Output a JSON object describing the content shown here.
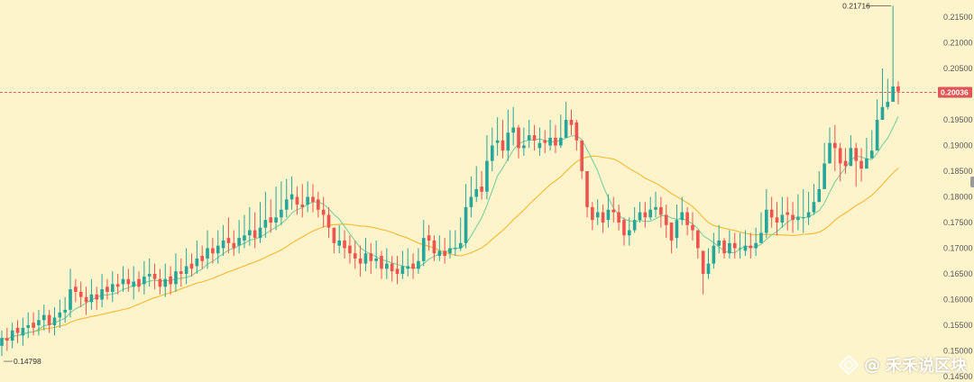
{
  "chart_data": {
    "type": "candlestick",
    "y_ticks": [
      "0.21500",
      "0.21000",
      "0.20500",
      "0.20000",
      "0.19500",
      "0.19000",
      "0.18500",
      "0.18000",
      "0.17500",
      "0.17000",
      "0.16500",
      "0.16000",
      "0.15500",
      "0.15000",
      "0.14500"
    ],
    "ylim": [
      0.1445,
      0.2175
    ],
    "current_price": "0.20036",
    "current_price_value": 0.20036,
    "max_label": "0.21716",
    "max_value": 0.21716,
    "min_label": "0.14798",
    "min_value": 0.14798,
    "colors": {
      "up": "#26a69a",
      "down": "#ef5350",
      "fast_ma": "#7ccfa0",
      "slow_ma": "#f5b82e",
      "price_line": "#e05555",
      "background": "#fdf4cc"
    },
    "closes": [
      0.1525,
      0.152,
      0.154,
      0.1535,
      0.1545,
      0.155,
      0.1545,
      0.156,
      0.157,
      0.155,
      0.1565,
      0.1575,
      0.158,
      0.162,
      0.1615,
      0.1605,
      0.1595,
      0.161,
      0.16,
      0.162,
      0.1615,
      0.163,
      0.1625,
      0.164,
      0.163,
      0.1635,
      0.1625,
      0.1645,
      0.165,
      0.164,
      0.1625,
      0.164,
      0.163,
      0.1655,
      0.165,
      0.1665,
      0.166,
      0.168,
      0.1675,
      0.17,
      0.169,
      0.1705,
      0.1715,
      0.171,
      0.17,
      0.172,
      0.1725,
      0.1735,
      0.172,
      0.174,
      0.1755,
      0.175,
      0.176,
      0.1775,
      0.1795,
      0.1805,
      0.1785,
      0.178,
      0.18,
      0.179,
      0.1775,
      0.1765,
      0.174,
      0.171,
      0.1715,
      0.17,
      0.169,
      0.168,
      0.167,
      0.169,
      0.1675,
      0.168,
      0.166,
      0.167,
      0.1655,
      0.165,
      0.1665,
      0.1665,
      0.166,
      0.1675,
      0.172,
      0.1715,
      0.169,
      0.1695,
      0.1685,
      0.17,
      0.17,
      0.171,
      0.178,
      0.18,
      0.1815,
      0.181,
      0.187,
      0.19,
      0.191,
      0.189,
      0.1925,
      0.1935,
      0.1895,
      0.19,
      0.192,
      0.191,
      0.1905,
      0.1905,
      0.1915,
      0.19,
      0.1915,
      0.195,
      0.194,
      0.191,
      0.185,
      0.178,
      0.1755,
      0.177,
      0.175,
      0.1775,
      0.177,
      0.175,
      0.1725,
      0.1735,
      0.1755,
      0.177,
      0.176,
      0.1775,
      0.178,
      0.1765,
      0.1745,
      0.1715,
      0.1755,
      0.177,
      0.1745,
      0.1735,
      0.17,
      0.165,
      0.167,
      0.1705,
      0.1715,
      0.169,
      0.171,
      0.17,
      0.17,
      0.1705,
      0.17,
      0.171,
      0.173,
      0.1775,
      0.176,
      0.175,
      0.1765,
      0.1765,
      0.1755,
      0.176,
      0.176,
      0.177,
      0.179,
      0.1815,
      0.1865,
      0.1905,
      0.1895,
      0.1865,
      0.186,
      0.1895,
      0.187,
      0.1855,
      0.1875,
      0.189,
      0.195,
      0.1975,
      0.1985,
      0.2015,
      0.2005
    ],
    "opens": [
      0.151,
      0.1525,
      0.152,
      0.1545,
      0.153,
      0.1545,
      0.1555,
      0.155,
      0.156,
      0.157,
      0.155,
      0.1565,
      0.1575,
      0.158,
      0.1625,
      0.1615,
      0.1605,
      0.1595,
      0.161,
      0.16,
      0.1625,
      0.1615,
      0.163,
      0.163,
      0.164,
      0.1625,
      0.164,
      0.163,
      0.1645,
      0.165,
      0.164,
      0.1625,
      0.1645,
      0.163,
      0.1655,
      0.165,
      0.167,
      0.1665,
      0.1685,
      0.168,
      0.17,
      0.169,
      0.17,
      0.172,
      0.171,
      0.1705,
      0.1715,
      0.1725,
      0.1735,
      0.172,
      0.174,
      0.176,
      0.175,
      0.176,
      0.1775,
      0.1795,
      0.18,
      0.1785,
      0.1785,
      0.18,
      0.1795,
      0.1775,
      0.1765,
      0.174,
      0.1705,
      0.1715,
      0.1705,
      0.169,
      0.168,
      0.167,
      0.169,
      0.1675,
      0.1685,
      0.166,
      0.167,
      0.166,
      0.165,
      0.166,
      0.167,
      0.166,
      0.1675,
      0.1725,
      0.1715,
      0.1685,
      0.1695,
      0.169,
      0.17,
      0.17,
      0.171,
      0.178,
      0.18,
      0.182,
      0.181,
      0.187,
      0.1905,
      0.191,
      0.189,
      0.1925,
      0.1935,
      0.1895,
      0.191,
      0.192,
      0.1895,
      0.191,
      0.19,
      0.1915,
      0.19,
      0.1915,
      0.195,
      0.1945,
      0.191,
      0.185,
      0.178,
      0.176,
      0.177,
      0.1755,
      0.1775,
      0.177,
      0.1755,
      0.1725,
      0.1735,
      0.1755,
      0.177,
      0.176,
      0.1775,
      0.178,
      0.1765,
      0.175,
      0.172,
      0.1755,
      0.177,
      0.1745,
      0.1735,
      0.1695,
      0.165,
      0.167,
      0.1705,
      0.1715,
      0.169,
      0.171,
      0.17,
      0.1695,
      0.1705,
      0.17,
      0.171,
      0.173,
      0.1775,
      0.176,
      0.175,
      0.177,
      0.1765,
      0.1755,
      0.176,
      0.176,
      0.177,
      0.179,
      0.1815,
      0.1865,
      0.1905,
      0.1895,
      0.187,
      0.186,
      0.1895,
      0.187,
      0.1855,
      0.1875,
      0.189,
      0.195,
      0.1975,
      0.1985,
      0.2015
    ],
    "highs": [
      0.154,
      0.1545,
      0.1555,
      0.156,
      0.1565,
      0.1575,
      0.1575,
      0.158,
      0.159,
      0.158,
      0.1585,
      0.16,
      0.1605,
      0.166,
      0.164,
      0.1635,
      0.1625,
      0.164,
      0.1625,
      0.165,
      0.164,
      0.1655,
      0.165,
      0.1665,
      0.166,
      0.1665,
      0.1655,
      0.1675,
      0.168,
      0.167,
      0.166,
      0.167,
      0.1665,
      0.169,
      0.168,
      0.17,
      0.169,
      0.1715,
      0.1705,
      0.1735,
      0.172,
      0.1735,
      0.1745,
      0.176,
      0.1735,
      0.1755,
      0.1765,
      0.178,
      0.177,
      0.179,
      0.181,
      0.1795,
      0.182,
      0.183,
      0.1835,
      0.184,
      0.182,
      0.1825,
      0.183,
      0.1825,
      0.181,
      0.18,
      0.178,
      0.174,
      0.1745,
      0.1735,
      0.1725,
      0.1715,
      0.1705,
      0.172,
      0.171,
      0.1715,
      0.1695,
      0.17,
      0.1685,
      0.1685,
      0.1695,
      0.17,
      0.169,
      0.17,
      0.1755,
      0.1745,
      0.1725,
      0.1725,
      0.172,
      0.1735,
      0.1735,
      0.176,
      0.1825,
      0.184,
      0.186,
      0.185,
      0.192,
      0.1935,
      0.1955,
      0.195,
      0.197,
      0.1975,
      0.194,
      0.1935,
      0.195,
      0.194,
      0.1935,
      0.193,
      0.195,
      0.194,
      0.196,
      0.1985,
      0.197,
      0.195,
      0.188,
      0.181,
      0.179,
      0.1795,
      0.1785,
      0.1805,
      0.18,
      0.1785,
      0.176,
      0.176,
      0.178,
      0.179,
      0.179,
      0.18,
      0.181,
      0.18,
      0.1785,
      0.1745,
      0.1785,
      0.18,
      0.178,
      0.177,
      0.173,
      0.169,
      0.17,
      0.173,
      0.1745,
      0.172,
      0.1735,
      0.173,
      0.173,
      0.1735,
      0.173,
      0.174,
      0.177,
      0.1815,
      0.18,
      0.179,
      0.18,
      0.18,
      0.179,
      0.1805,
      0.1815,
      0.181,
      0.1825,
      0.185,
      0.1905,
      0.1935,
      0.194,
      0.1905,
      0.1895,
      0.192,
      0.1905,
      0.1895,
      0.1915,
      0.193,
      0.199,
      0.205,
      0.203,
      0.2172,
      0.2025
    ],
    "lows": [
      0.149,
      0.15,
      0.1505,
      0.1515,
      0.151,
      0.1525,
      0.153,
      0.153,
      0.154,
      0.1535,
      0.153,
      0.1545,
      0.1555,
      0.1565,
      0.1595,
      0.1585,
      0.157,
      0.158,
      0.158,
      0.1585,
      0.16,
      0.1595,
      0.161,
      0.1615,
      0.1615,
      0.16,
      0.1615,
      0.161,
      0.1625,
      0.162,
      0.161,
      0.1605,
      0.161,
      0.1615,
      0.1625,
      0.163,
      0.1645,
      0.165,
      0.166,
      0.166,
      0.167,
      0.167,
      0.1685,
      0.169,
      0.1685,
      0.169,
      0.17,
      0.1705,
      0.17,
      0.171,
      0.172,
      0.173,
      0.1735,
      0.1745,
      0.176,
      0.1775,
      0.1765,
      0.176,
      0.177,
      0.177,
      0.176,
      0.174,
      0.172,
      0.169,
      0.169,
      0.168,
      0.167,
      0.166,
      0.1645,
      0.1655,
      0.165,
      0.166,
      0.164,
      0.164,
      0.1635,
      0.163,
      0.164,
      0.1645,
      0.164,
      0.165,
      0.1665,
      0.1695,
      0.1675,
      0.1675,
      0.167,
      0.168,
      0.1685,
      0.1695,
      0.17,
      0.176,
      0.179,
      0.1795,
      0.1795,
      0.185,
      0.188,
      0.1875,
      0.187,
      0.19,
      0.1875,
      0.188,
      0.1895,
      0.189,
      0.188,
      0.1885,
      0.189,
      0.1885,
      0.1895,
      0.193,
      0.192,
      0.189,
      0.1835,
      0.176,
      0.1735,
      0.1745,
      0.173,
      0.174,
      0.175,
      0.1735,
      0.1705,
      0.1705,
      0.173,
      0.175,
      0.174,
      0.1755,
      0.176,
      0.174,
      0.172,
      0.169,
      0.17,
      0.1745,
      0.1725,
      0.1715,
      0.168,
      0.161,
      0.164,
      0.166,
      0.169,
      0.168,
      0.168,
      0.168,
      0.168,
      0.1685,
      0.168,
      0.1685,
      0.171,
      0.172,
      0.174,
      0.1725,
      0.174,
      0.1735,
      0.173,
      0.1735,
      0.173,
      0.1745,
      0.1765,
      0.179,
      0.185,
      0.187,
      0.185,
      0.183,
      0.1845,
      0.186,
      0.182,
      0.183,
      0.1855,
      0.188,
      0.192,
      0.1955,
      0.197,
      0.1995,
      0.198
    ]
  },
  "watermark": {
    "at_symbol": "@",
    "text": "禾禾说区块"
  }
}
